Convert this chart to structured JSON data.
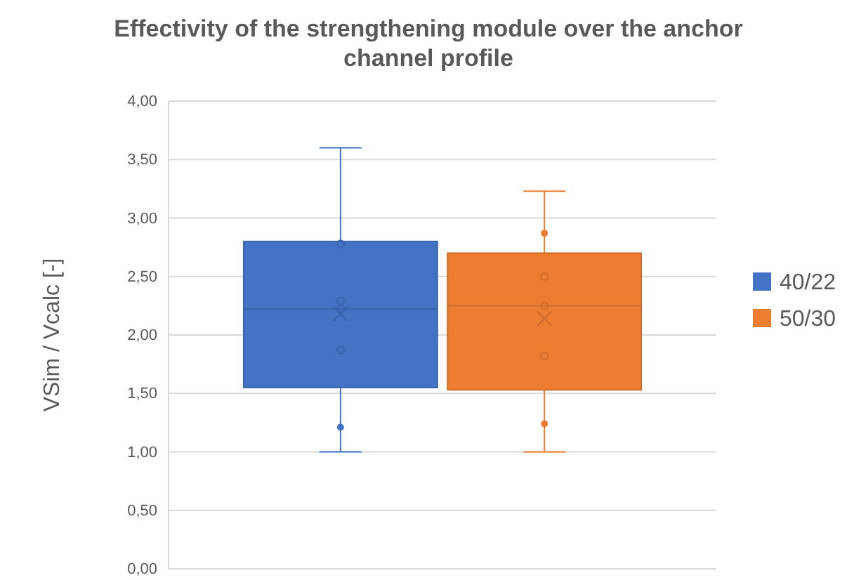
{
  "chart_data": {
    "type": "box",
    "title": "Effectivity of the strengthening module over the anchor channel profile",
    "ylabel": "VSim / Vcalc [-]",
    "categories": [
      null
    ],
    "ylim": [
      0,
      4
    ],
    "yticks": [
      {
        "value": 0,
        "label": "0,00"
      },
      {
        "value": 0.5,
        "label": "0,50"
      },
      {
        "value": 1,
        "label": "1,00"
      },
      {
        "value": 1.5,
        "label": "1,50"
      },
      {
        "value": 2,
        "label": "2,00"
      },
      {
        "value": 2.5,
        "label": "2,50"
      },
      {
        "value": 3,
        "label": "3,00"
      },
      {
        "value": 3.5,
        "label": "3,50"
      },
      {
        "value": 4,
        "label": "4,00"
      }
    ],
    "grid": "y",
    "legend": "right",
    "series": [
      {
        "name": "40/22",
        "color": "#4472c4",
        "boxes": [
          {
            "low": 1.0,
            "q1": 1.55,
            "median": 2.22,
            "q3": 2.8,
            "high": 3.6,
            "mean": 2.18,
            "outliers": [
              1.21
            ]
          }
        ]
      },
      {
        "name": "50/30",
        "color": "#ed7d31",
        "boxes": [
          {
            "low": 1.0,
            "q1": 1.53,
            "median": 2.25,
            "q3": 2.7,
            "high": 3.23,
            "mean": 2.14,
            "outliers": [
              2.87,
              1.24
            ]
          }
        ]
      },
      {
        "type": "scatter",
        "color": "#3b63aa",
        "marker": "circle",
        "x": [
          null,
          null,
          null,
          null
        ],
        "values": [
          2.78,
          2.29,
          2.22,
          1.87
        ]
      },
      {
        "type": "scatter",
        "color": "#cd6c2a",
        "marker": "circle",
        "x": [
          null,
          null,
          null
        ],
        "values": [
          2.5,
          2.25,
          1.82
        ]
      }
    ]
  }
}
